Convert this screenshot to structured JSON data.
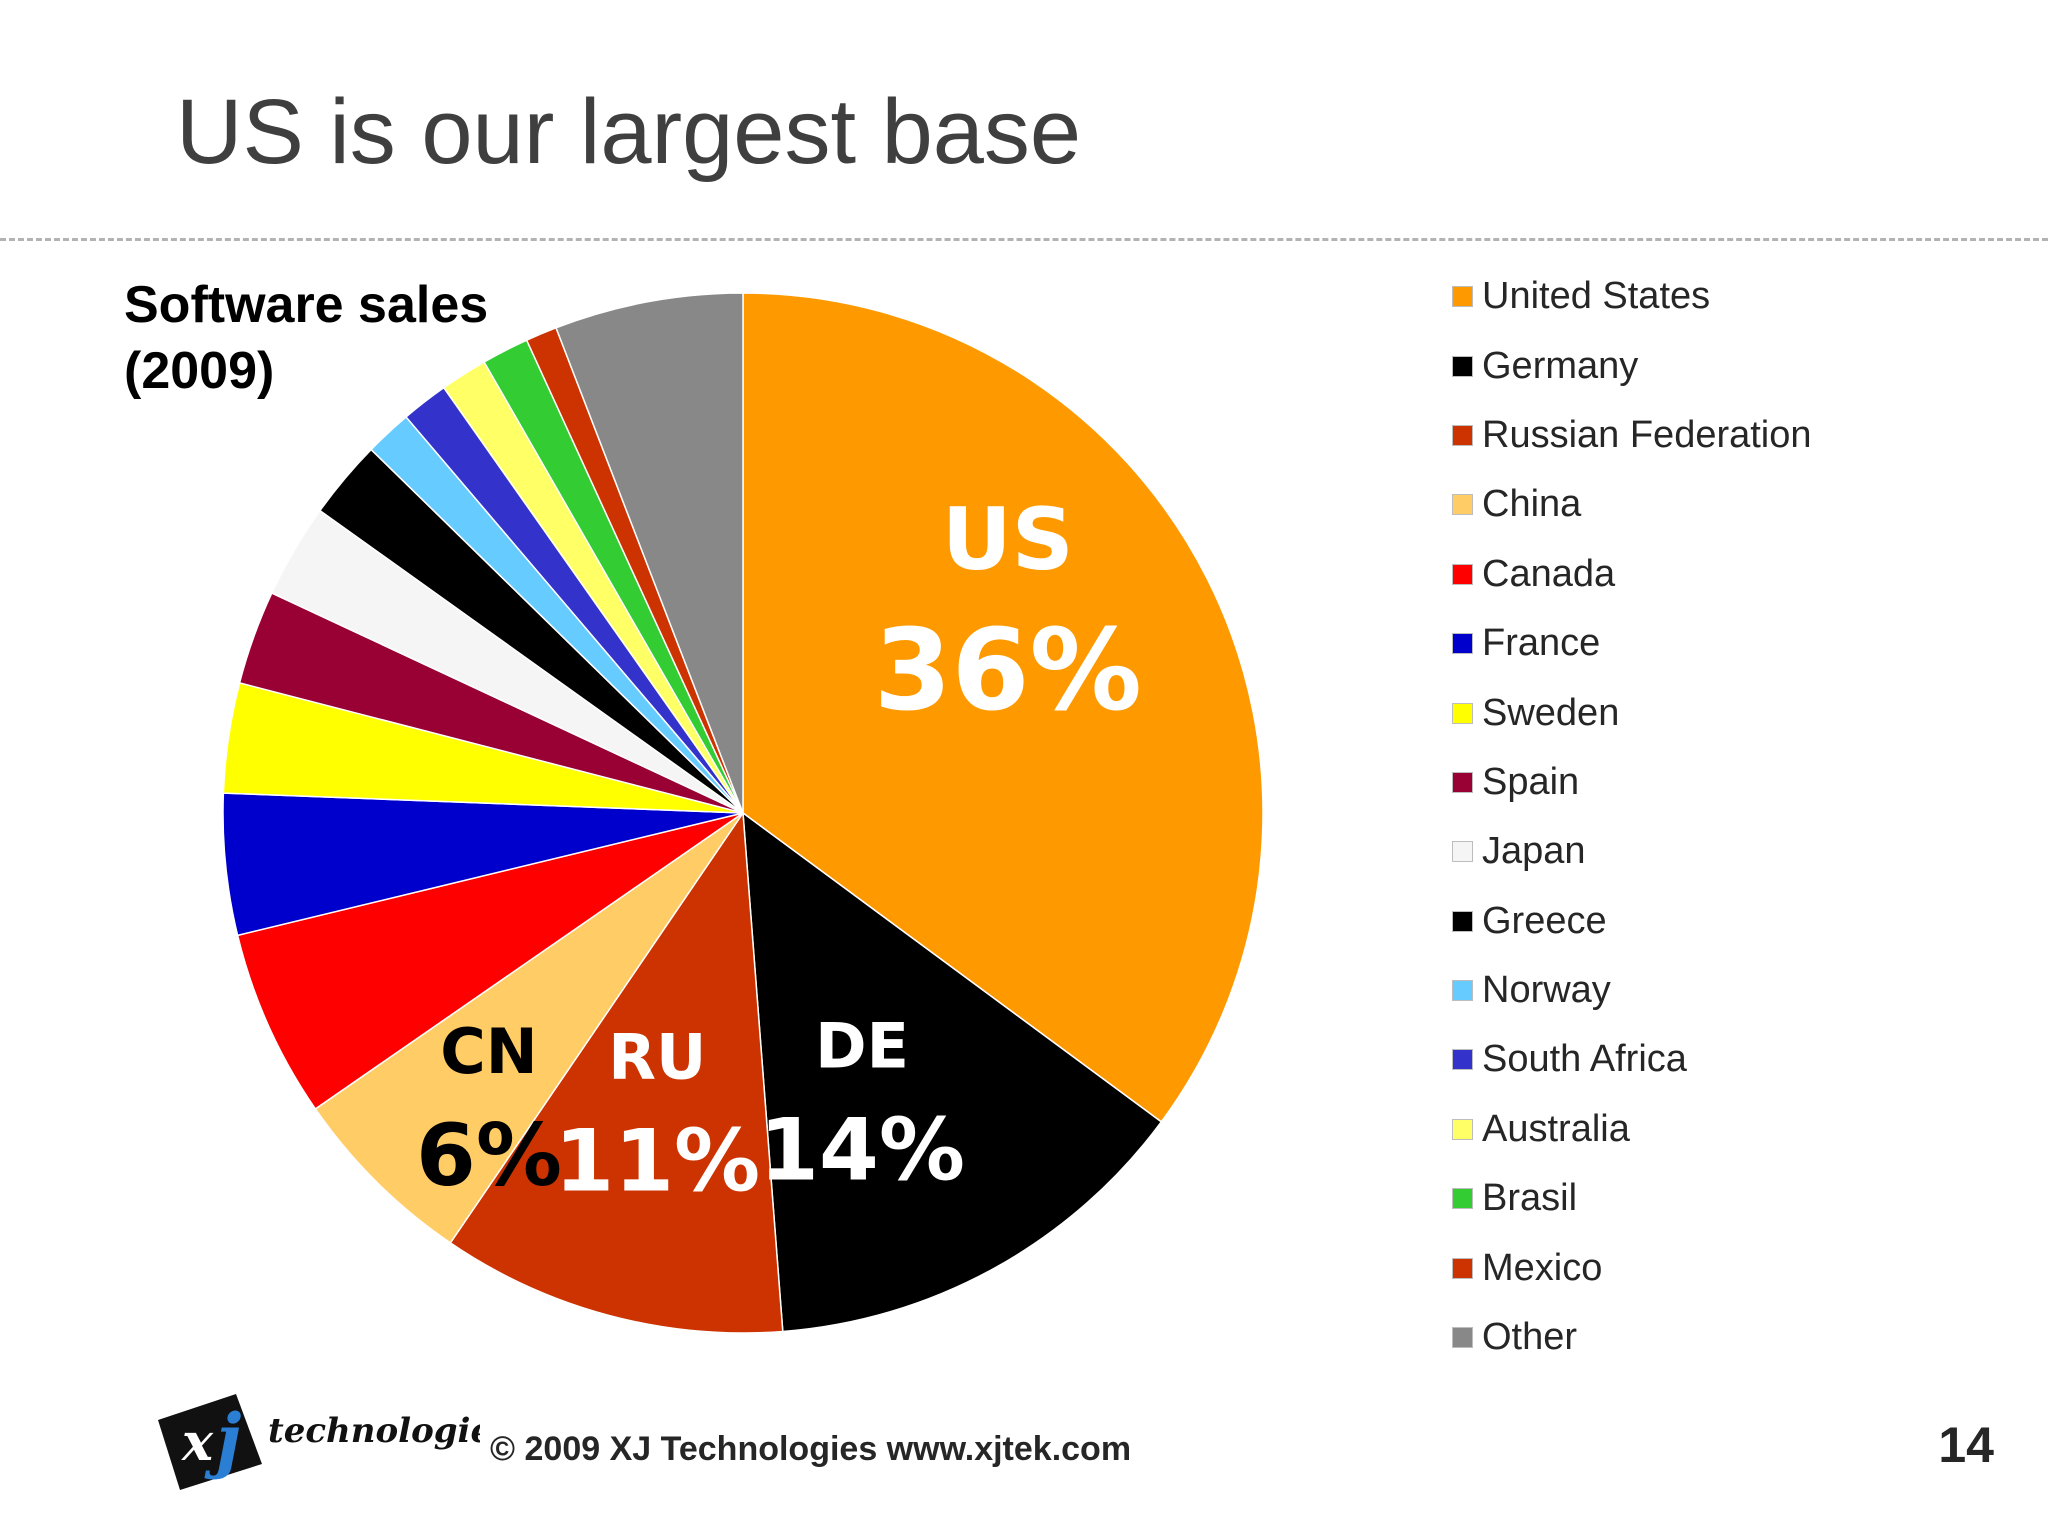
{
  "slide": {
    "title": "US is our largest base",
    "copyright": "© 2009 XJ Technologies www.xjtek.com",
    "page_number": "14",
    "logo_text": "xj",
    "logo_word": "technologies"
  },
  "chart_data": {
    "type": "pie",
    "title_lines": [
      "Software sales",
      "(2009)"
    ],
    "units": "%",
    "start_angle_deg": 0,
    "direction": "clockwise",
    "legend_position": "right",
    "slices": [
      {
        "name": "United States",
        "value": 36,
        "color": "#ff9900"
      },
      {
        "name": "Germany",
        "value": 14,
        "color": "#000000"
      },
      {
        "name": "Russian Federation",
        "value": 11,
        "color": "#cc3300"
      },
      {
        "name": "China",
        "value": 6,
        "color": "#ffcc66"
      },
      {
        "name": "Canada",
        "value": 6,
        "color": "#ff0000"
      },
      {
        "name": "France",
        "value": 4.5,
        "color": "#0000cc"
      },
      {
        "name": "Sweden",
        "value": 3.5,
        "color": "#ffff00"
      },
      {
        "name": "Spain",
        "value": 3,
        "color": "#990033"
      },
      {
        "name": "Japan",
        "value": 3,
        "color": "#f5f5f5"
      },
      {
        "name": "Greece",
        "value": 2.5,
        "color": "#000000"
      },
      {
        "name": "Norway",
        "value": 1.5,
        "color": "#66ccff"
      },
      {
        "name": "South Africa",
        "value": 1.5,
        "color": "#3333cc"
      },
      {
        "name": "Australia",
        "value": 1.5,
        "color": "#ffff66"
      },
      {
        "name": "Brasil",
        "value": 1.5,
        "color": "#33cc33"
      },
      {
        "name": "Mexico",
        "value": 1,
        "color": "#cc3300"
      },
      {
        "name": "Other",
        "value": 6,
        "color": "#888888"
      }
    ],
    "data_labels": [
      {
        "slice": "United States",
        "code": "US",
        "percent": "36%",
        "color": "#ffffff"
      },
      {
        "slice": "Germany",
        "code": "DE",
        "percent": "14%",
        "color": "#ffffff"
      },
      {
        "slice": "Russian Federation",
        "code": "RU",
        "percent": "11%",
        "color": "#ffffff"
      },
      {
        "slice": "China",
        "code": "CN",
        "percent": "6%",
        "color": "#000000"
      }
    ]
  }
}
